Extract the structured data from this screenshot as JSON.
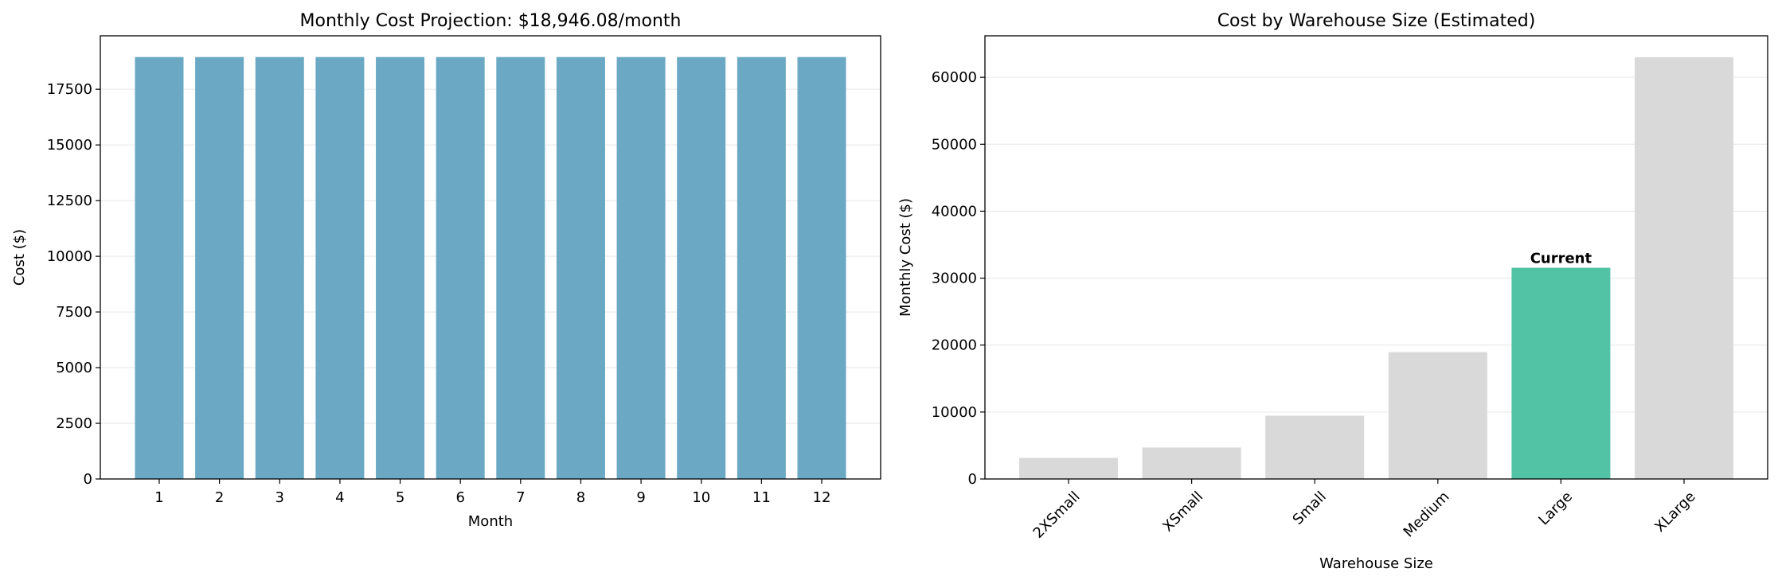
{
  "chart_data": [
    {
      "type": "bar",
      "title": "Monthly Cost Projection: $18,946.08/month",
      "xlabel": "Month",
      "ylabel": "Cost ($)",
      "categories": [
        "1",
        "2",
        "3",
        "4",
        "5",
        "6",
        "7",
        "8",
        "9",
        "10",
        "11",
        "12"
      ],
      "values": [
        18946.08,
        18946.08,
        18946.08,
        18946.08,
        18946.08,
        18946.08,
        18946.08,
        18946.08,
        18946.08,
        18946.08,
        18946.08,
        18946.08
      ],
      "ylim": [
        0,
        19900
      ],
      "yticks": [
        0,
        2500,
        5000,
        7500,
        10000,
        12500,
        15000,
        17500
      ],
      "grid": "y",
      "bar_color": "#6aa8c3"
    },
    {
      "type": "bar",
      "title": "Cost by Warehouse Size (Estimated)",
      "xlabel": "Warehouse Size",
      "ylabel": "Monthly Cost ($)",
      "categories": [
        "2XSmall",
        "XSmall",
        "Small",
        "Medium",
        "Large",
        "XLarge"
      ],
      "values": [
        3150,
        4700,
        9450,
        18946.08,
        31550,
        63000
      ],
      "ylim": [
        0,
        66200
      ],
      "yticks": [
        0,
        10000,
        20000,
        30000,
        40000,
        50000,
        60000
      ],
      "grid": "y",
      "bar_colors": [
        "#d9d9d9",
        "#d9d9d9",
        "#d9d9d9",
        "#d9d9d9",
        "#52c3a4",
        "#d9d9d9"
      ],
      "annotation": {
        "category": "Large",
        "text": "Current"
      },
      "tick_rotation": 45
    }
  ]
}
